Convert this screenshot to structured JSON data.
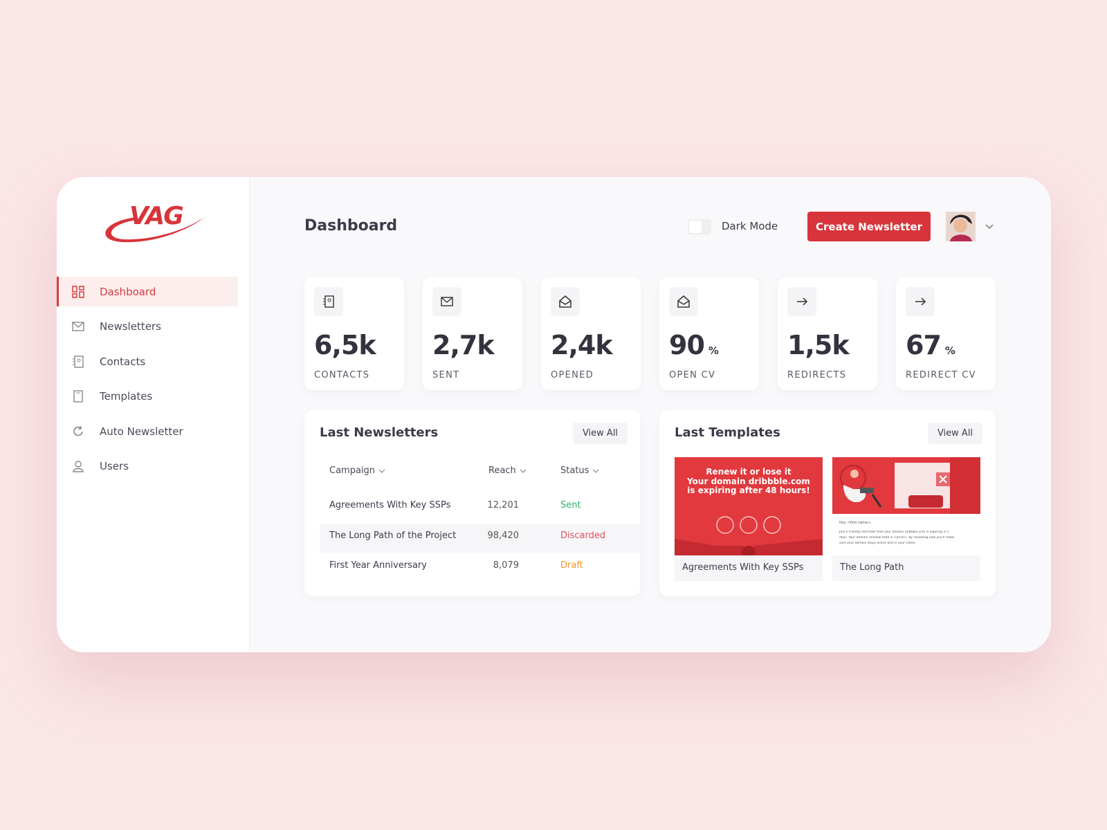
{
  "logo": "VAG",
  "nav": [
    {
      "label": "Dashboard",
      "active": true
    },
    {
      "label": "Newsletters",
      "active": false
    },
    {
      "label": "Contacts",
      "active": false
    },
    {
      "label": "Templates",
      "active": false
    },
    {
      "label": "Auto Newsletter",
      "active": false
    },
    {
      "label": "Users",
      "active": false
    }
  ],
  "header": {
    "title": "Dashboard",
    "toggle_label": "Dark Mode",
    "button": "Create Newsletter"
  },
  "stats": [
    {
      "value": "6,5k",
      "unit": null,
      "label": "CONTACTS"
    },
    {
      "value": "2,7k",
      "unit": null,
      "label": "SENT"
    },
    {
      "value": "2,4k",
      "unit": null,
      "label": "OPENED"
    },
    {
      "value": "90",
      "unit": "%",
      "label": "OPEN CV"
    },
    {
      "value": "1,5k",
      "unit": null,
      "label": "REDIRECTS"
    },
    {
      "value": "67",
      "unit": "%",
      "label": "REDIRECT CV"
    }
  ],
  "newsletters": {
    "title": "Last Newsletters",
    "view_all": "View All",
    "columns": [
      "Campaign",
      "Reach",
      "Status"
    ],
    "rows": [
      {
        "campaign": "Agreements With Key SSPs",
        "reach": "12,201",
        "status": "Sent",
        "status_color": "#2fb163"
      },
      {
        "campaign": "The Long Path of the Project",
        "reach": "98,420",
        "status": "Discarded",
        "status_color": "#e0505a"
      },
      {
        "campaign": "First Year Anniversary",
        "reach": "8,079",
        "status": "Draft",
        "status_color": "#f0962a"
      }
    ]
  },
  "templates": {
    "title": "Last Templates",
    "view_all": "View All",
    "items": [
      {
        "name": "Agreements With Key SSPs",
        "preview_lines": [
          "Renew it or lose it",
          "Your domain dribbble.com",
          "is expiring after 48 hours!"
        ]
      },
      {
        "name": "The Long Path",
        "preview_lines": [
          "Hey <first name>,",
          "Just a friendly reminder that your domain dribbble.com is expiring in 5",
          "days. Your domain renewal total is <price>. By renewing now you'll make",
          "sure your domain stays active and in your name."
        ]
      }
    ]
  }
}
